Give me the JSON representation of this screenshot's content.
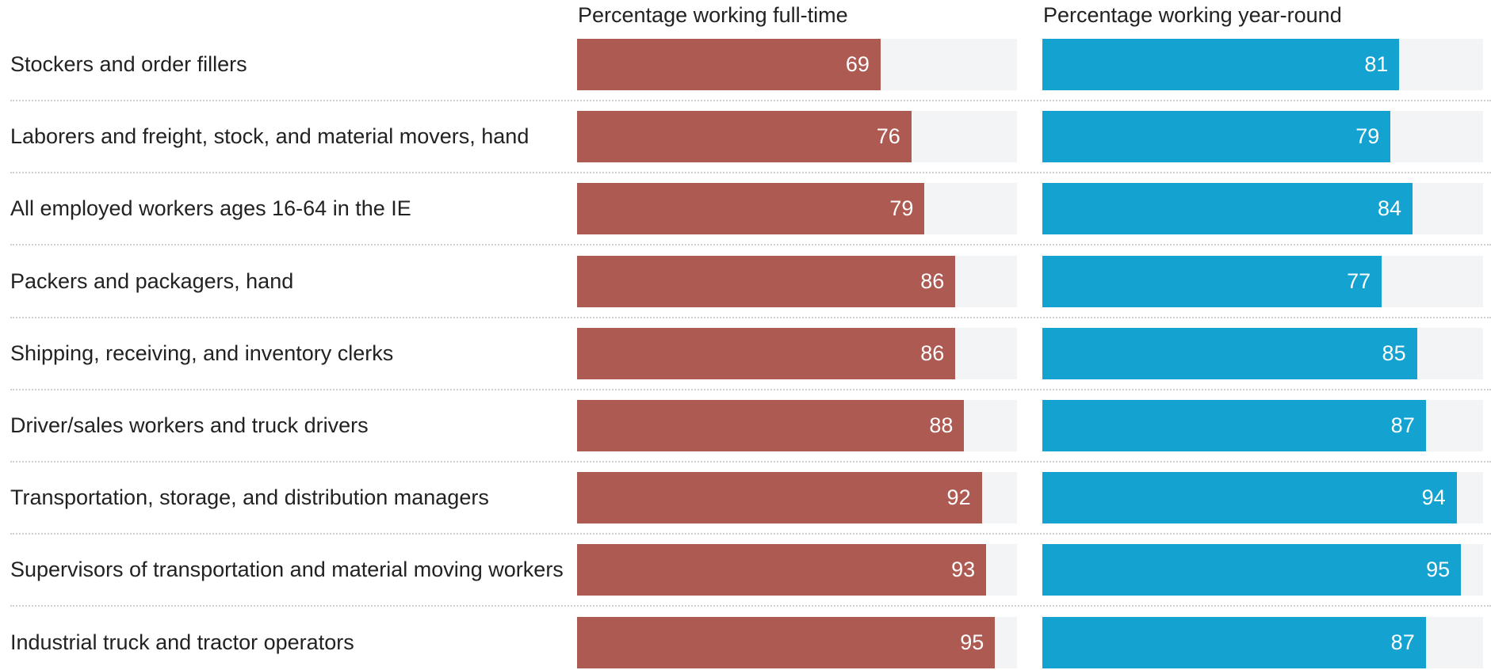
{
  "chart_data": {
    "type": "bar",
    "categories": [
      "Stockers and order fillers",
      "Laborers and freight, stock, and material movers, hand",
      "All employed workers ages 16-64 in the IE",
      "Packers and packagers, hand",
      "Shipping, receiving, and inventory clerks",
      "Driver/sales workers and truck drivers",
      "Transportation, storage, and distribution managers",
      "Supervisors of transportation and material moving workers",
      "Industrial truck and tractor operators"
    ],
    "series": [
      {
        "name": "Percentage working full-time",
        "color": "#ad5a52",
        "values": [
          69,
          76,
          79,
          86,
          86,
          88,
          92,
          93,
          95
        ]
      },
      {
        "name": "Percentage working year-round",
        "color": "#14a2d0",
        "values": [
          81,
          79,
          84,
          77,
          85,
          87,
          94,
          95,
          87
        ]
      }
    ],
    "xlim": [
      0,
      100
    ]
  }
}
